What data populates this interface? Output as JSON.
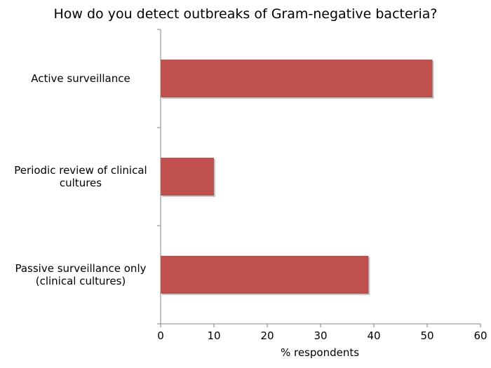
{
  "chart_data": {
    "type": "bar",
    "orientation": "horizontal",
    "title": "How do you detect outbreaks of Gram-negative bacteria?",
    "xlabel": "% respondents",
    "ylabel": "",
    "categories": [
      [
        "Active surveillance"
      ],
      [
        "Periodic review of clinical",
        "cultures"
      ],
      [
        "Passive surveillance only",
        "(clinical cultures)"
      ]
    ],
    "values": [
      51,
      10,
      39
    ],
    "xlim": [
      0,
      60
    ],
    "xticks": [
      0,
      10,
      20,
      30,
      40,
      50,
      60
    ],
    "grid": false,
    "legend": "none",
    "colors": {
      "bar": "#c0504d",
      "bar_shadow": "#c8c8c8",
      "axis": "#868686",
      "text": "#000000"
    }
  }
}
